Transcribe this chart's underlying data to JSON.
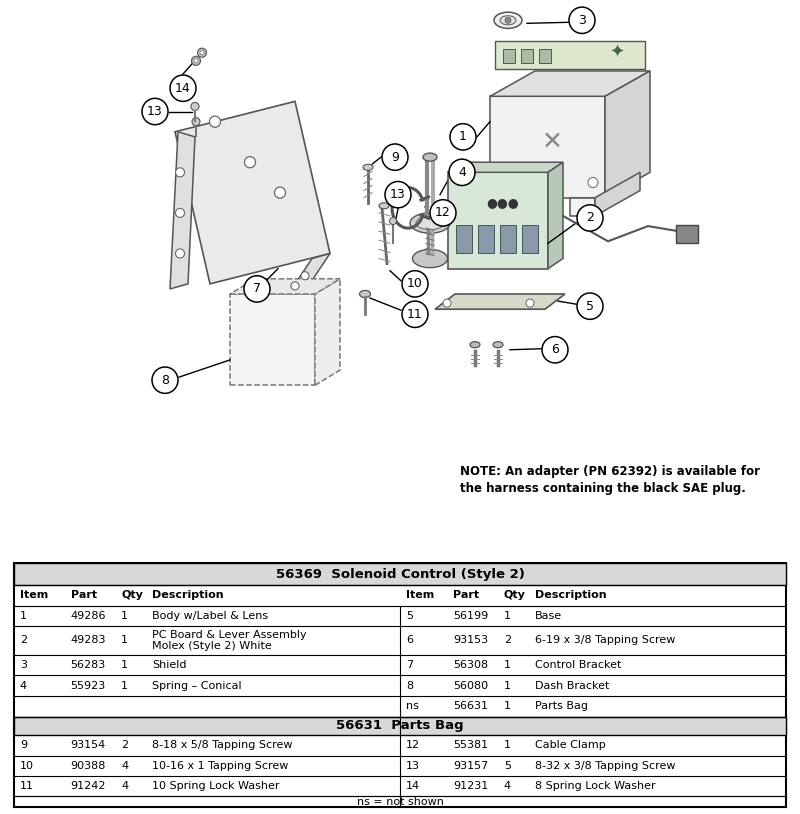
{
  "title": "56369  Solenoid Control (Style 2)",
  "parts_bag_title": "56631  Parts Bag",
  "footer_note": "ns = not shown",
  "note_text": "NOTE: An adapter (PN 62392) is available for\nthe harness containing the black SAE plug.",
  "header_cols": [
    "Item",
    "Part",
    "Qty",
    "Description"
  ],
  "main_rows_left": [
    [
      "1",
      "49286",
      "1",
      "Body w/Label & Lens"
    ],
    [
      "2",
      "49283",
      "1",
      "PC Board & Lever Assembly\nMolex (Style 2) White"
    ],
    [
      "3",
      "56283",
      "1",
      "Shield"
    ],
    [
      "4",
      "55923",
      "1",
      "Spring – Conical"
    ]
  ],
  "main_rows_right": [
    [
      "5",
      "56199",
      "1",
      "Base"
    ],
    [
      "6",
      "93153",
      "2",
      "6-19 x 3/8 Tapping Screw"
    ],
    [
      "7",
      "56308",
      "1",
      "Control Bracket"
    ],
    [
      "8",
      "56080",
      "1",
      "Dash Bracket"
    ],
    [
      "ns",
      "56631",
      "1",
      "Parts Bag"
    ]
  ],
  "bag_rows_left": [
    [
      "9",
      "93154",
      "2",
      "8-18 x 5/8 Tapping Screw"
    ],
    [
      "10",
      "90388",
      "4",
      "10-16 x 1 Tapping Screw"
    ],
    [
      "11",
      "91242",
      "4",
      "10 Spring Lock Washer"
    ]
  ],
  "bag_rows_right": [
    [
      "12",
      "55381",
      "1",
      "Cable Clamp"
    ],
    [
      "13",
      "93157",
      "5",
      "8-32 x 3/8 Tapping Screw"
    ],
    [
      "14",
      "91231",
      "4",
      "8 Spring Lock Washer"
    ]
  ],
  "bg_color": "#ffffff"
}
